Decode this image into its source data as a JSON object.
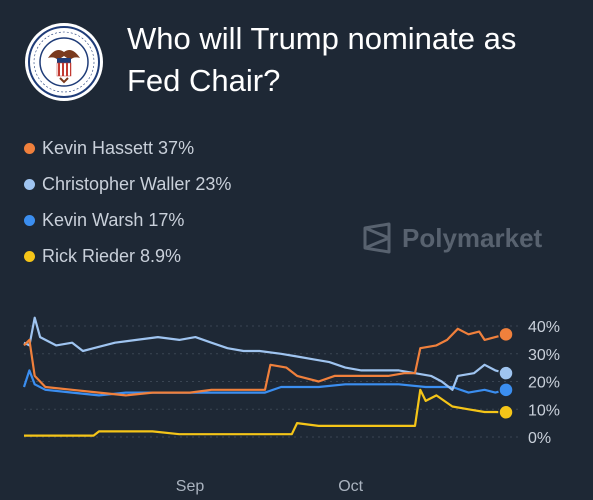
{
  "header": {
    "title": "Who will Trump nominate as Fed Chair?",
    "seal_icon": "federal-reserve-seal-icon"
  },
  "brand": {
    "name": "Polymarket",
    "icon": "polymarket-logo-icon"
  },
  "legend": [
    {
      "label": "Kevin Hassett 37%",
      "color": "#f0803c"
    },
    {
      "label": "Christopher Waller 23%",
      "color": "#9fc4f0"
    },
    {
      "label": "Kevin Warsh 17%",
      "color": "#3b8ef0"
    },
    {
      "label": "Rick Rieder 8.9%",
      "color": "#f5c518"
    }
  ],
  "chart_data": {
    "type": "line",
    "title": "Who will Trump nominate as Fed Chair?",
    "xlabel": "",
    "ylabel": "",
    "ylim": [
      0,
      40
    ],
    "yticks": [
      "40%",
      "30%",
      "20%",
      "10%",
      "0%"
    ],
    "xticks": [
      {
        "label": "Sep",
        "x": "2025-09-01"
      },
      {
        "label": "Oct",
        "x": "2025-10-01"
      }
    ],
    "grid": true,
    "x_range": [
      "2025-08-01",
      "2025-10-30"
    ],
    "series": [
      {
        "name": "Kevin Hassett",
        "color": "#f0803c",
        "points": [
          [
            "2025-08-01",
            33
          ],
          [
            "2025-08-02",
            35
          ],
          [
            "2025-08-03",
            22
          ],
          [
            "2025-08-05",
            18
          ],
          [
            "2025-08-10",
            17
          ],
          [
            "2025-08-15",
            16
          ],
          [
            "2025-08-20",
            15
          ],
          [
            "2025-08-25",
            16
          ],
          [
            "2025-09-01",
            16
          ],
          [
            "2025-09-05",
            17
          ],
          [
            "2025-09-10",
            17
          ],
          [
            "2025-09-15",
            17
          ],
          [
            "2025-09-16",
            26
          ],
          [
            "2025-09-19",
            25
          ],
          [
            "2025-09-21",
            22
          ],
          [
            "2025-09-25",
            20
          ],
          [
            "2025-09-28",
            22
          ],
          [
            "2025-10-01",
            22
          ],
          [
            "2025-10-05",
            22
          ],
          [
            "2025-10-08",
            22
          ],
          [
            "2025-10-11",
            23
          ],
          [
            "2025-10-13",
            23
          ],
          [
            "2025-10-14",
            32
          ],
          [
            "2025-10-17",
            33
          ],
          [
            "2025-10-19",
            35
          ],
          [
            "2025-10-21",
            39
          ],
          [
            "2025-10-23",
            37
          ],
          [
            "2025-10-25",
            38
          ],
          [
            "2025-10-26",
            35
          ],
          [
            "2025-10-28",
            36
          ],
          [
            "2025-10-30",
            37
          ]
        ]
      },
      {
        "name": "Christopher Waller",
        "color": "#9fc4f0",
        "points": [
          [
            "2025-08-01",
            34
          ],
          [
            "2025-08-02",
            33
          ],
          [
            "2025-08-03",
            43
          ],
          [
            "2025-08-04",
            36
          ],
          [
            "2025-08-07",
            33
          ],
          [
            "2025-08-10",
            34
          ],
          [
            "2025-08-12",
            31
          ],
          [
            "2025-08-14",
            32
          ],
          [
            "2025-08-18",
            34
          ],
          [
            "2025-08-22",
            35
          ],
          [
            "2025-08-26",
            36
          ],
          [
            "2025-08-30",
            35
          ],
          [
            "2025-09-02",
            36
          ],
          [
            "2025-09-05",
            34
          ],
          [
            "2025-09-08",
            32
          ],
          [
            "2025-09-11",
            31
          ],
          [
            "2025-09-14",
            31
          ],
          [
            "2025-09-18",
            30
          ],
          [
            "2025-09-21",
            29
          ],
          [
            "2025-09-24",
            28
          ],
          [
            "2025-09-27",
            27
          ],
          [
            "2025-09-30",
            25
          ],
          [
            "2025-10-03",
            24
          ],
          [
            "2025-10-06",
            24
          ],
          [
            "2025-10-10",
            24
          ],
          [
            "2025-10-13",
            23
          ],
          [
            "2025-10-16",
            22
          ],
          [
            "2025-10-18",
            20
          ],
          [
            "2025-10-20",
            17
          ],
          [
            "2025-10-21",
            22
          ],
          [
            "2025-10-24",
            23
          ],
          [
            "2025-10-26",
            26
          ],
          [
            "2025-10-28",
            24
          ],
          [
            "2025-10-30",
            23
          ]
        ]
      },
      {
        "name": "Kevin Warsh",
        "color": "#3b8ef0",
        "points": [
          [
            "2025-08-01",
            18
          ],
          [
            "2025-08-02",
            24
          ],
          [
            "2025-08-03",
            19
          ],
          [
            "2025-08-05",
            17
          ],
          [
            "2025-08-10",
            16
          ],
          [
            "2025-08-15",
            15
          ],
          [
            "2025-08-20",
            16
          ],
          [
            "2025-08-25",
            16
          ],
          [
            "2025-09-01",
            16
          ],
          [
            "2025-09-05",
            16
          ],
          [
            "2025-09-10",
            16
          ],
          [
            "2025-09-15",
            16
          ],
          [
            "2025-09-18",
            18
          ],
          [
            "2025-09-21",
            18
          ],
          [
            "2025-09-25",
            18
          ],
          [
            "2025-09-30",
            19
          ],
          [
            "2025-10-05",
            19
          ],
          [
            "2025-10-10",
            19
          ],
          [
            "2025-10-15",
            18
          ],
          [
            "2025-10-20",
            18
          ],
          [
            "2025-10-23",
            16
          ],
          [
            "2025-10-26",
            17
          ],
          [
            "2025-10-28",
            16
          ],
          [
            "2025-10-30",
            17
          ]
        ]
      },
      {
        "name": "Rick Rieder",
        "color": "#f5c518",
        "points": [
          [
            "2025-08-01",
            0.5
          ],
          [
            "2025-08-10",
            0.5
          ],
          [
            "2025-08-14",
            0.5
          ],
          [
            "2025-08-15",
            2
          ],
          [
            "2025-08-20",
            2
          ],
          [
            "2025-08-25",
            2
          ],
          [
            "2025-08-30",
            1
          ],
          [
            "2025-09-05",
            1
          ],
          [
            "2025-09-10",
            1
          ],
          [
            "2025-09-15",
            1
          ],
          [
            "2025-09-20",
            1
          ],
          [
            "2025-09-21",
            5
          ],
          [
            "2025-09-25",
            4
          ],
          [
            "2025-09-30",
            4
          ],
          [
            "2025-10-05",
            4
          ],
          [
            "2025-10-10",
            4
          ],
          [
            "2025-10-13",
            4
          ],
          [
            "2025-10-14",
            17
          ],
          [
            "2025-10-15",
            13
          ],
          [
            "2025-10-17",
            15
          ],
          [
            "2025-10-20",
            11
          ],
          [
            "2025-10-23",
            10
          ],
          [
            "2025-10-26",
            9
          ],
          [
            "2025-10-28",
            9
          ],
          [
            "2025-10-30",
            8.9
          ]
        ]
      }
    ]
  }
}
